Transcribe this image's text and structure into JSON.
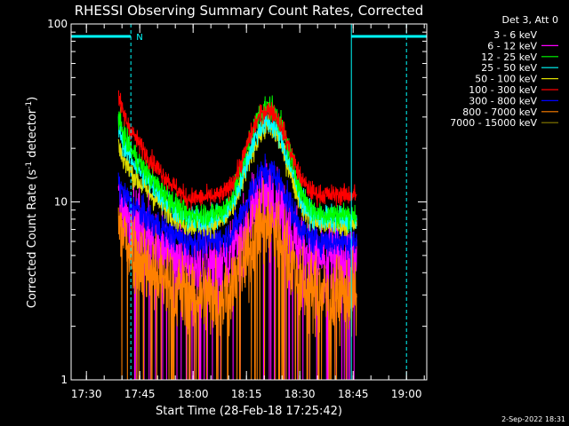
{
  "chart_data": {
    "type": "line",
    "title": "RHESSI Observing Summary Count Rates, Corrected",
    "xlabel": "Start Time (28-Feb-18 17:25:42)",
    "ylabel": "Corrected Count Rate (s",
    "ylabel_sup1": "-1",
    "ylabel_mid": " detector",
    "ylabel_sup2": "-1",
    "ylabel_end": ")",
    "y_scale": "log",
    "ylim": [
      1,
      100
    ],
    "y_ticks": [
      {
        "value": 1,
        "label": "1"
      },
      {
        "value": 10,
        "label": "10"
      },
      {
        "value": 100,
        "label": "100"
      }
    ],
    "xlim": [
      "17:25:42",
      "19:05:42"
    ],
    "x_ticks": [
      "17:30",
      "17:45",
      "18:00",
      "18:15",
      "18:30",
      "18:45",
      "19:00"
    ],
    "legend_header": "Det 3, Att 0",
    "legend_position": "outside-top-right",
    "footer_date": "2-Sep-2022 18:31",
    "data_start": "17:39",
    "data_end": "18:46",
    "series": [
      {
        "name": "3 - 6 keV",
        "color": "#000000",
        "start": 14,
        "peak": 7.5,
        "min": 5.5,
        "end": 6.0,
        "noise": 0.3
      },
      {
        "name": "6 - 12 keV",
        "color": "#ff00ff",
        "start": 11,
        "peak": 11,
        "min": 4.5,
        "end": 5.0,
        "noise": 0.45
      },
      {
        "name": "12 - 25 keV",
        "color": "#00ff00",
        "start": 32,
        "peak": 34,
        "min": 8.5,
        "end": 8.5,
        "noise": 0.16
      },
      {
        "name": "25 - 50 keV",
        "color": "#00ffff",
        "start": 28,
        "peak": 28,
        "min": 8.0,
        "end": 8.0,
        "noise": 0.16
      },
      {
        "name": "50 - 100 keV",
        "color": "#dddd00",
        "start": 22,
        "peak": 26,
        "min": 7.5,
        "end": 7.5,
        "noise": 0.16
      },
      {
        "name": "100 - 300 keV",
        "color": "#ff0000",
        "start": 42,
        "peak": 33,
        "min": 10.5,
        "end": 11,
        "noise": 0.13
      },
      {
        "name": "300 - 800 keV",
        "color": "#0000ff",
        "start": 13,
        "peak": 15,
        "min": 6.0,
        "end": 6.0,
        "noise": 0.2
      },
      {
        "name": "800 - 7000 keV",
        "color": "#ff8000",
        "start": 8,
        "peak": 7.5,
        "min": 3.0,
        "end": 3.0,
        "noise": 0.5
      },
      {
        "name": "7000 - 15000 keV",
        "color": "#8b7d00",
        "start": 0,
        "peak": 0,
        "min": 0,
        "end": 0,
        "noise": 0
      }
    ],
    "saa_bars": [
      {
        "start": "17:25:42",
        "end": "17:42:30",
        "label": "N"
      },
      {
        "start": "18:44:30",
        "end": "19:05:42",
        "label": ""
      }
    ],
    "vertical_markers": [
      "17:25:42",
      "17:42:30",
      "18:44:30",
      "19:00"
    ]
  }
}
